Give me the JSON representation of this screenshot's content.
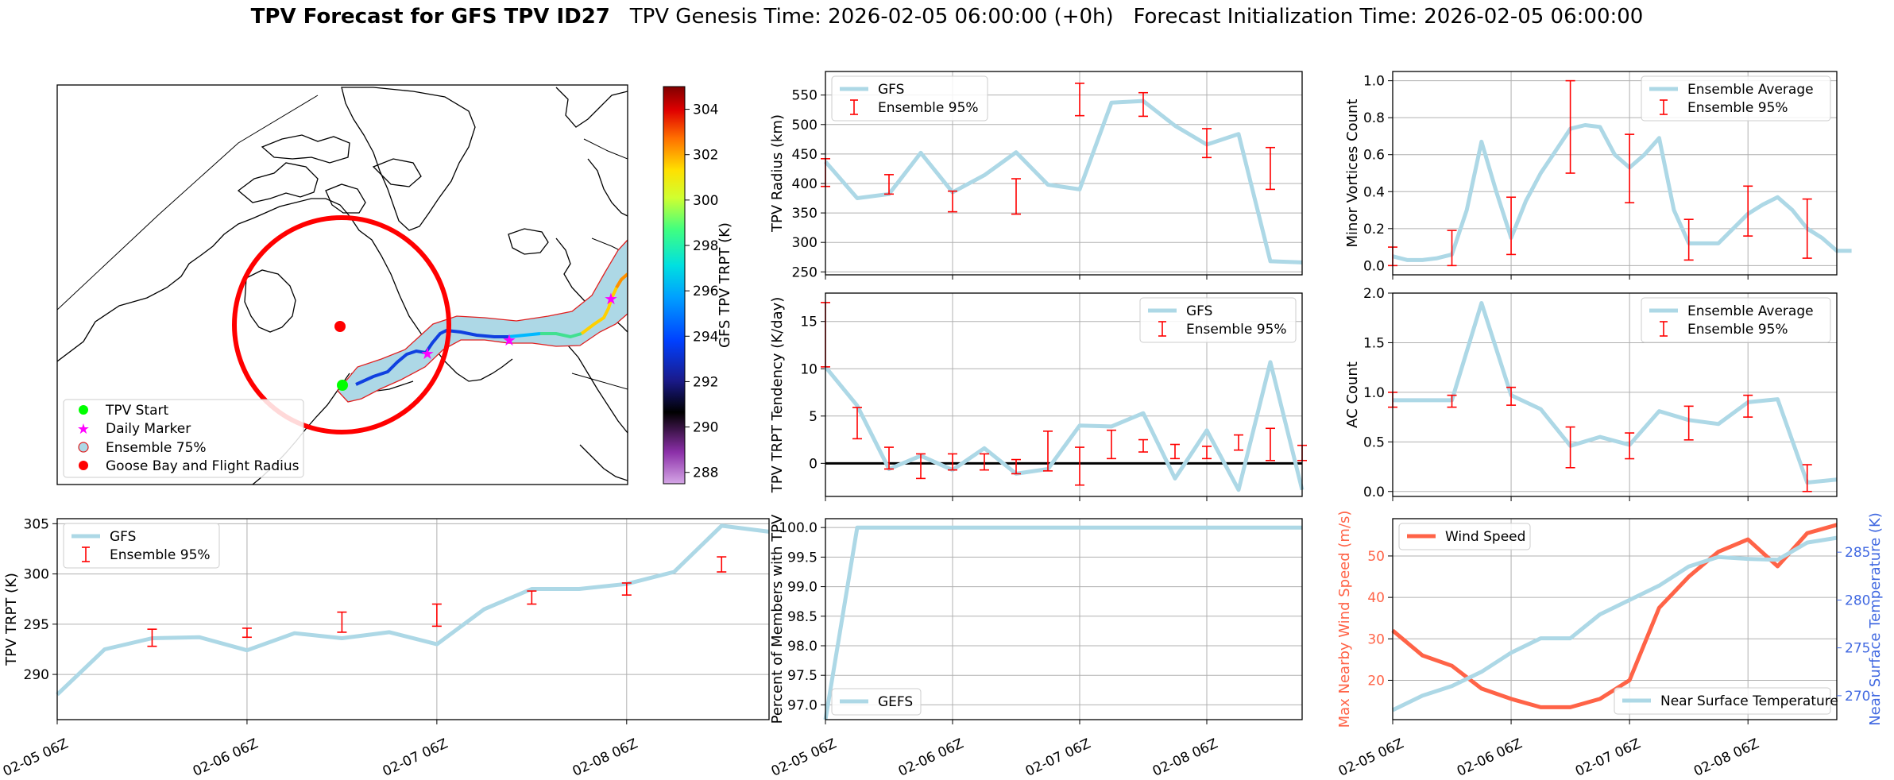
{
  "figure": {
    "title_bold": "TPV Forecast for GFS TPV ID27",
    "title_rest": "TPV Genesis Time: 2026-02-05 06:00:00 (+0h)   Forecast Initialization Time: 2026-02-05 06:00:00"
  },
  "colors": {
    "gfs": "#add8e6",
    "ensemble": "#ff0000",
    "wind": "#ff6347",
    "temp_axis": "#4169e1",
    "zero_line": "#000000"
  },
  "time_ticks": [
    "02-05 06Z",
    "02-06 06Z",
    "02-07 06Z",
    "02-08 06Z"
  ],
  "map": {
    "colorbar": {
      "label": "GFS TPV TRPT (K)",
      "range": [
        287.5,
        305
      ],
      "ticks": [
        "288",
        "290",
        "292",
        "294",
        "296",
        "298",
        "300",
        "302",
        "304"
      ]
    },
    "legend": [
      "TPV Start",
      "Daily Marker",
      "Ensemble 75%",
      "Goose Bay and Flight Radius"
    ]
  },
  "chart_data": [
    {
      "id": "radius",
      "type": "line",
      "title": "",
      "ylabel": "TPV Radius (km)",
      "ylim": [
        245,
        590
      ],
      "yticks": [
        250,
        300,
        350,
        400,
        450,
        500,
        550
      ],
      "legend": [
        "GFS",
        "Ensemble 95%"
      ],
      "legend_pos": "top-left",
      "series": [
        {
          "name": "GFS",
          "x": [
            0,
            0.25,
            0.5,
            0.75,
            1,
            1.25,
            1.5,
            1.75,
            2,
            2.25,
            2.5,
            2.75,
            3,
            3.25,
            3.5,
            3.75
          ],
          "values": [
            437,
            375,
            382,
            452,
            385,
            414,
            453,
            398,
            390,
            537,
            540,
            498,
            466,
            484,
            268,
            266
          ]
        }
      ],
      "errorbars": [
        {
          "x": 0,
          "lo": 395,
          "hi": 442
        },
        {
          "x": 0.5,
          "lo": 382,
          "hi": 415
        },
        {
          "x": 1,
          "lo": 352,
          "hi": 387
        },
        {
          "x": 1.5,
          "lo": 348,
          "hi": 408
        },
        {
          "x": 2,
          "lo": 515,
          "hi": 570
        },
        {
          "x": 2.5,
          "lo": 514,
          "hi": 554
        },
        {
          "x": 3,
          "lo": 444,
          "hi": 493
        },
        {
          "x": 3.5,
          "lo": 390,
          "hi": 461
        }
      ]
    },
    {
      "id": "tendency",
      "type": "line",
      "title": "",
      "ylabel": "TPV TRPT Tendency (K/day)",
      "ylim": [
        -3.5,
        18
      ],
      "yticks": [
        0,
        5,
        10,
        15
      ],
      "zero_line": true,
      "legend": [
        "GFS",
        "Ensemble 95%"
      ],
      "legend_pos": "top-right",
      "series": [
        {
          "name": "GFS",
          "x": [
            0,
            0.25,
            0.5,
            0.75,
            1,
            1.25,
            1.5,
            1.75,
            2,
            2.25,
            2.5,
            2.75,
            3,
            3.25,
            3.5,
            3.75
          ],
          "values": [
            10.2,
            6.1,
            -0.6,
            0.8,
            -0.7,
            1.6,
            -1.1,
            -0.6,
            4.0,
            3.9,
            5.3,
            -1.6,
            3.5,
            -2.8,
            10.7,
            -2.8
          ]
        }
      ],
      "errorbars": [
        {
          "x": 0,
          "lo": 10.2,
          "hi": 17
        },
        {
          "x": 0.25,
          "lo": 2.6,
          "hi": 5.9
        },
        {
          "x": 0.5,
          "lo": -0.6,
          "hi": 1.7
        },
        {
          "x": 0.75,
          "lo": -1.6,
          "hi": 1.0
        },
        {
          "x": 1,
          "lo": -0.7,
          "hi": 1.0
        },
        {
          "x": 1.25,
          "lo": -0.7,
          "hi": 1.0
        },
        {
          "x": 1.5,
          "lo": -1.1,
          "hi": 0.4
        },
        {
          "x": 1.75,
          "lo": -0.8,
          "hi": 3.4
        },
        {
          "x": 2,
          "lo": -2.3,
          "hi": 1.7
        },
        {
          "x": 2.25,
          "lo": 0.5,
          "hi": 3.5
        },
        {
          "x": 2.5,
          "lo": 1.2,
          "hi": 2.5
        },
        {
          "x": 2.75,
          "lo": 0.5,
          "hi": 2.0
        },
        {
          "x": 3,
          "lo": 0.5,
          "hi": 1.8
        },
        {
          "x": 3.25,
          "lo": 1.4,
          "hi": 3.0
        },
        {
          "x": 3.5,
          "lo": 0.3,
          "hi": 3.7
        },
        {
          "x": 3.75,
          "lo": 0.3,
          "hi": 1.9
        }
      ]
    },
    {
      "id": "trpt",
      "type": "line",
      "title": "",
      "ylabel": "TPV TRPT (K)",
      "ylim": [
        285.5,
        305.5
      ],
      "yticks": [
        290,
        295,
        300,
        305
      ],
      "legend": [
        "GFS",
        "Ensemble 95%"
      ],
      "legend_pos": "top-left",
      "series": [
        {
          "name": "GFS",
          "x": [
            0,
            0.25,
            0.5,
            0.75,
            1,
            1.25,
            1.5,
            1.75,
            2,
            2.25,
            2.5,
            2.75,
            3,
            3.25,
            3.5,
            3.75
          ],
          "values": [
            288.0,
            292.5,
            293.6,
            293.7,
            292.4,
            294.1,
            293.6,
            294.2,
            293.0,
            296.5,
            298.5,
            298.5,
            299.0,
            300.2,
            304.8,
            304.2
          ]
        }
      ],
      "errorbars": [
        {
          "x": 0.5,
          "lo": 292.8,
          "hi": 294.5
        },
        {
          "x": 1,
          "lo": 293.7,
          "hi": 294.6
        },
        {
          "x": 1.5,
          "lo": 294.2,
          "hi": 296.2
        },
        {
          "x": 2,
          "lo": 294.8,
          "hi": 297.0
        },
        {
          "x": 2.5,
          "lo": 297.0,
          "hi": 298.3
        },
        {
          "x": 3,
          "lo": 297.9,
          "hi": 299.1
        },
        {
          "x": 3.5,
          "lo": 300.2,
          "hi": 301.7
        }
      ]
    },
    {
      "id": "percent",
      "type": "line",
      "title": "",
      "ylabel": "Percent of Members with TPV",
      "ylim": [
        96.75,
        100.15
      ],
      "yticks": [
        97.0,
        97.5,
        98.0,
        98.5,
        99.0,
        99.5,
        100.0
      ],
      "legend": [
        "GEFS"
      ],
      "legend_pos": "bottom-left",
      "series": [
        {
          "name": "GEFS",
          "x": [
            0,
            0.25,
            0.5,
            0.75,
            1,
            1.25,
            1.5,
            1.75,
            2,
            2.25,
            2.5,
            2.75,
            3,
            3.25,
            3.5,
            3.75
          ],
          "values": [
            96.75,
            100,
            100,
            100,
            100,
            100,
            100,
            100,
            100,
            100,
            100,
            100,
            100,
            100,
            100,
            100
          ]
        }
      ],
      "errorbars": []
    },
    {
      "id": "minor",
      "type": "line",
      "title": "",
      "ylabel": "Minor Vortices Count",
      "ylim": [
        -0.05,
        1.05
      ],
      "yticks": [
        0.0,
        0.2,
        0.4,
        0.6,
        0.8,
        1.0
      ],
      "legend": [
        "Ensemble Average",
        "Ensemble 95%"
      ],
      "legend_pos": "top-right",
      "series": [
        {
          "name": "Ensemble Average",
          "x": [
            0,
            0.125,
            0.25,
            0.375,
            0.5,
            0.625,
            0.75,
            0.875,
            1,
            1.125,
            1.25,
            1.375,
            1.5,
            1.625,
            1.75,
            1.875,
            2,
            2.125,
            2.25,
            2.375,
            2.5,
            2.625,
            2.75,
            2.875,
            3,
            3.125,
            3.25,
            3.375,
            3.5,
            3.625,
            3.75,
            3.875
          ],
          "values": [
            0.05,
            0.03,
            0.03,
            0.04,
            0.06,
            0.3,
            0.67,
            0.4,
            0.15,
            0.35,
            0.5,
            0.62,
            0.74,
            0.76,
            0.75,
            0.6,
            0.53,
            0.6,
            0.69,
            0.3,
            0.12,
            0.12,
            0.12,
            0.2,
            0.28,
            0.33,
            0.37,
            0.3,
            0.2,
            0.15,
            0.08,
            0.08
          ]
        }
      ],
      "errorbars": [
        {
          "x": 0,
          "lo": 0,
          "hi": 0.1
        },
        {
          "x": 0.5,
          "lo": 0,
          "hi": 0.19
        },
        {
          "x": 1,
          "lo": 0.06,
          "hi": 0.37
        },
        {
          "x": 1.5,
          "lo": 0.5,
          "hi": 1.0
        },
        {
          "x": 2,
          "lo": 0.34,
          "hi": 0.71
        },
        {
          "x": 2.5,
          "lo": 0.03,
          "hi": 0.25
        },
        {
          "x": 3,
          "lo": 0.16,
          "hi": 0.43
        },
        {
          "x": 3.5,
          "lo": 0.04,
          "hi": 0.36
        }
      ]
    },
    {
      "id": "ac",
      "type": "line",
      "title": "",
      "ylabel": "AC Count",
      "ylim": [
        -0.05,
        2.0
      ],
      "yticks": [
        0.0,
        0.5,
        1.0,
        1.5,
        2.0
      ],
      "legend": [
        "Ensemble Average",
        "Ensemble 95%"
      ],
      "legend_pos": "top-right",
      "series": [
        {
          "name": "Ensemble Average",
          "x": [
            0,
            0.25,
            0.5,
            0.75,
            1,
            1.25,
            1.5,
            1.75,
            2,
            2.25,
            2.5,
            2.75,
            3,
            3.25,
            3.5,
            3.75
          ],
          "values": [
            0.92,
            0.92,
            0.92,
            1.9,
            0.97,
            0.83,
            0.46,
            0.55,
            0.47,
            0.81,
            0.72,
            0.68,
            0.9,
            0.93,
            0.09,
            0.12
          ]
        }
      ],
      "errorbars": [
        {
          "x": 0,
          "lo": 0.85,
          "hi": 1.0
        },
        {
          "x": 0.5,
          "lo": 0.85,
          "hi": 0.97
        },
        {
          "x": 1,
          "lo": 0.87,
          "hi": 1.05
        },
        {
          "x": 1.5,
          "lo": 0.24,
          "hi": 0.65
        },
        {
          "x": 2,
          "lo": 0.33,
          "hi": 0.59
        },
        {
          "x": 2.5,
          "lo": 0.52,
          "hi": 0.86
        },
        {
          "x": 3,
          "lo": 0.75,
          "hi": 0.97
        },
        {
          "x": 3.5,
          "lo": 0.0,
          "hi": 0.27
        }
      ]
    },
    {
      "id": "wind",
      "type": "line",
      "title": "",
      "ylabel": "Max Nearby Wind Speed (m/s)",
      "ylabel2": "Near Surface Temperature (K)",
      "ylim": [
        10.5,
        59
      ],
      "ylim2": [
        267.5,
        288.5
      ],
      "yticks": [
        20,
        30,
        40,
        50
      ],
      "yticks2": [
        270,
        275,
        280,
        285
      ],
      "legend": [
        "Wind Speed",
        "Near Surface Temperature"
      ],
      "legend_pos": "top-left / bottom-right",
      "series": [
        {
          "name": "Wind Speed",
          "axis": "left",
          "x": [
            0,
            0.25,
            0.5,
            0.75,
            1,
            1.25,
            1.5,
            1.75,
            2,
            2.25,
            2.5,
            2.75,
            3,
            3.25,
            3.5,
            3.75
          ],
          "values": [
            32,
            26,
            23.5,
            18,
            15.5,
            13.5,
            13.5,
            15.5,
            20,
            37.5,
            45,
            51,
            54,
            47.5,
            55.5,
            57.5
          ]
        },
        {
          "name": "Near Surface Temperature",
          "axis": "right",
          "x": [
            0,
            0.25,
            0.5,
            0.75,
            1,
            1.25,
            1.5,
            1.75,
            2,
            2.25,
            2.5,
            2.75,
            3,
            3.25,
            3.5,
            3.75
          ],
          "values": [
            268.5,
            270,
            271,
            272.5,
            274.5,
            276,
            276,
            278.5,
            280,
            281.5,
            283.5,
            284.5,
            284.3,
            284.2,
            286,
            286.5
          ]
        }
      ],
      "errorbars": []
    }
  ]
}
